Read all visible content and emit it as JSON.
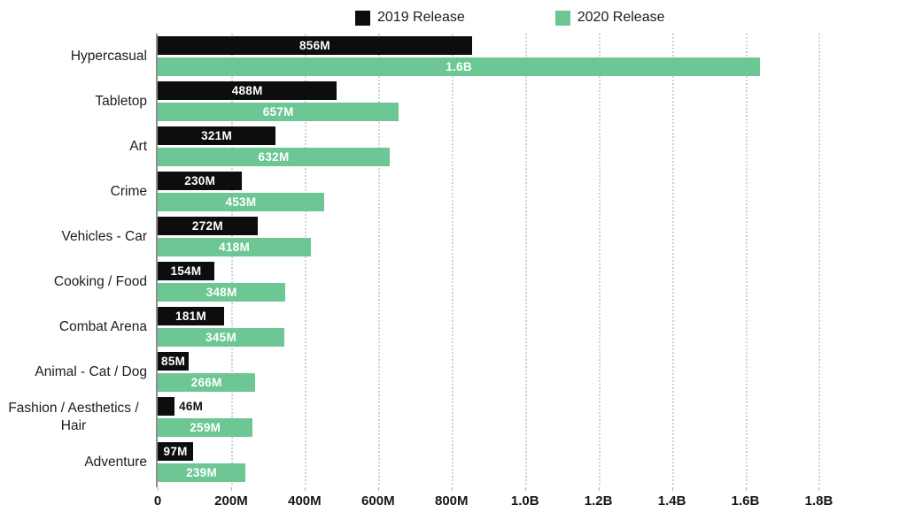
{
  "chart_data": {
    "type": "bar",
    "orientation": "horizontal",
    "categories": [
      "Hypercasual",
      "Tabletop",
      "Art",
      "Crime",
      "Vehicles - Car",
      "Cooking / Food",
      "Combat Arena",
      "Animal - Cat / Dog",
      "Fashion / Aesthetics / Hair",
      "Adventure"
    ],
    "series": [
      {
        "name": "2019 Release",
        "color": "#0d0d0d",
        "values_millions": [
          856,
          488,
          321,
          230,
          272,
          154,
          181,
          85,
          46,
          97
        ],
        "labels": [
          "856M",
          "488M",
          "321M",
          "230M",
          "272M",
          "154M",
          "181M",
          "85M",
          "46M",
          "97M"
        ]
      },
      {
        "name": "2020 Release",
        "color": "#6cc794",
        "values_millions": [
          1640,
          657,
          632,
          453,
          418,
          348,
          345,
          266,
          259,
          239
        ],
        "labels": [
          "1.6B",
          "657M",
          "632M",
          "453M",
          "418M",
          "348M",
          "345M",
          "266M",
          "259M",
          "239M"
        ]
      }
    ],
    "x_ticks": [
      {
        "value": 0,
        "label": "0"
      },
      {
        "value": 200,
        "label": "200M"
      },
      {
        "value": 400,
        "label": "400M"
      },
      {
        "value": 600,
        "label": "600M"
      },
      {
        "value": 800,
        "label": "800M"
      },
      {
        "value": 1000,
        "label": "1.0B"
      },
      {
        "value": 1200,
        "label": "1.2B"
      },
      {
        "value": 1400,
        "label": "1.4B"
      },
      {
        "value": 1600,
        "label": "1.6B"
      },
      {
        "value": 1800,
        "label": "1.8B"
      }
    ],
    "xlim": [
      0,
      2040
    ],
    "grid": "vertical-dotted",
    "legend_position": "top",
    "value_label_color_inside": "#ffffff",
    "value_label_color_outside": "#111111",
    "gridline_color": "#d2d2d2",
    "axis_line_color": "#8e8e8e"
  }
}
